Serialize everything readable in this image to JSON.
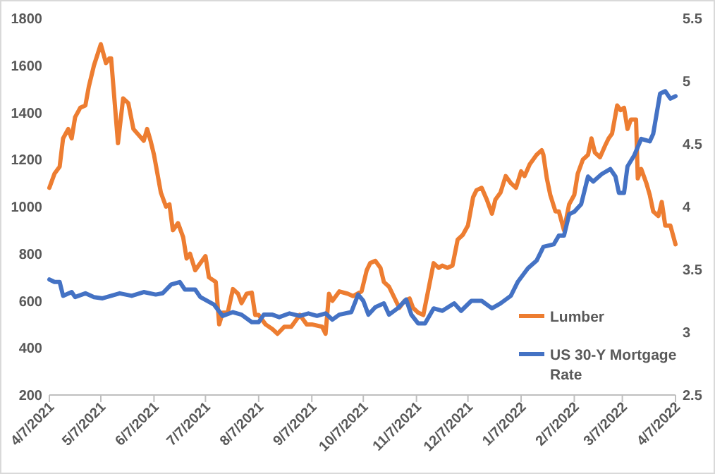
{
  "chart_data": {
    "type": "line",
    "legend": "bottom right",
    "marker": "none",
    "line_style": "solid",
    "grid": false,
    "xlim": [
      "2021-04-07",
      "2022-04-07"
    ],
    "xticks": [
      {
        "value": "2021-04-07",
        "label": "4/7/2021"
      },
      {
        "value": "2021-05-07",
        "label": "5/7/2021"
      },
      {
        "value": "2021-06-07",
        "label": "6/7/2021"
      },
      {
        "value": "2021-07-07",
        "label": "7/7/2021"
      },
      {
        "value": "2021-08-07",
        "label": "8/7/2021"
      },
      {
        "value": "2021-09-07",
        "label": "9/7/2021"
      },
      {
        "value": "2021-10-07",
        "label": "10/7/2021"
      },
      {
        "value": "2021-11-07",
        "label": "11/7/2021"
      },
      {
        "value": "2021-12-07",
        "label": "12/7/2021"
      },
      {
        "value": "2022-01-07",
        "label": "1/7/2022"
      },
      {
        "value": "2022-02-07",
        "label": "2/7/2022"
      },
      {
        "value": "2022-03-07",
        "label": "3/7/2022"
      },
      {
        "value": "2022-04-07",
        "label": "4/7/2022"
      }
    ],
    "ylim": [
      200,
      1800
    ],
    "yticks": [
      200,
      400,
      600,
      800,
      1000,
      1200,
      1400,
      1600,
      1800
    ],
    "y2lim": [
      2.5,
      5.5
    ],
    "y2ticks": [
      2.5,
      3,
      3.5,
      4,
      4.5,
      5,
      5.5
    ],
    "series": [
      {
        "name": "Lumber",
        "color": "#ed7d31",
        "x": [
          "2021-04-07",
          "2021-04-10",
          "2021-04-13",
          "2021-04-15",
          "2021-04-18",
          "2021-04-20",
          "2021-04-22",
          "2021-04-25",
          "2021-04-28",
          "2021-04-30",
          "2021-05-03",
          "2021-05-07",
          "2021-05-10",
          "2021-05-12",
          "2021-05-13",
          "2021-05-17",
          "2021-05-20",
          "2021-05-23",
          "2021-05-26",
          "2021-06-01",
          "2021-06-03",
          "2021-06-05",
          "2021-06-07",
          "2021-06-11",
          "2021-06-14",
          "2021-06-16",
          "2021-06-18",
          "2021-06-21",
          "2021-06-24",
          "2021-06-26",
          "2021-06-28",
          "2021-07-01",
          "2021-07-07",
          "2021-07-09",
          "2021-07-13",
          "2021-07-15",
          "2021-07-17",
          "2021-07-20",
          "2021-07-23",
          "2021-07-26",
          "2021-07-28",
          "2021-07-31",
          "2021-08-03",
          "2021-08-05",
          "2021-08-07",
          "2021-08-11",
          "2021-08-15",
          "2021-08-18",
          "2021-08-22",
          "2021-08-26",
          "2021-08-31",
          "2021-09-04",
          "2021-09-07",
          "2021-09-13",
          "2021-09-15",
          "2021-09-17",
          "2021-09-19",
          "2021-09-23",
          "2021-09-28",
          "2021-10-01",
          "2021-10-06",
          "2021-10-09",
          "2021-10-11",
          "2021-10-14",
          "2021-10-17",
          "2021-10-19",
          "2021-10-22",
          "2021-10-26",
          "2021-10-28",
          "2021-10-31",
          "2021-11-03",
          "2021-11-05",
          "2021-11-08",
          "2021-11-11",
          "2021-11-14",
          "2021-11-17",
          "2021-11-20",
          "2021-11-22",
          "2021-11-25",
          "2021-11-28",
          "2021-12-01",
          "2021-12-04",
          "2021-12-07",
          "2021-12-10",
          "2021-12-12",
          "2021-12-15",
          "2021-12-18",
          "2021-12-21",
          "2021-12-23",
          "2021-12-26",
          "2021-12-29",
          "2022-01-01",
          "2022-01-04",
          "2022-01-07",
          "2022-01-09",
          "2022-01-12",
          "2022-01-16",
          "2022-01-19",
          "2022-01-20",
          "2022-01-22",
          "2022-01-24",
          "2022-01-27",
          "2022-01-29",
          "2022-02-01",
          "2022-02-04",
          "2022-02-07",
          "2022-02-09",
          "2022-02-12",
          "2022-02-15",
          "2022-02-17",
          "2022-02-19",
          "2022-02-22",
          "2022-02-25",
          "2022-02-27",
          "2022-03-01",
          "2022-03-04",
          "2022-03-06",
          "2022-03-08",
          "2022-03-10",
          "2022-03-12",
          "2022-03-15",
          "2022-03-16",
          "2022-03-18",
          "2022-03-21",
          "2022-03-23",
          "2022-03-25",
          "2022-03-28",
          "2022-03-30",
          "2022-04-01",
          "2022-04-04",
          "2022-04-07"
        ],
        "values": [
          1080,
          1140,
          1170,
          1290,
          1330,
          1290,
          1380,
          1420,
          1430,
          1510,
          1600,
          1690,
          1610,
          1630,
          1630,
          1270,
          1460,
          1440,
          1330,
          1280,
          1330,
          1280,
          1220,
          1060,
          1000,
          1010,
          900,
          930,
          870,
          780,
          800,
          730,
          790,
          700,
          680,
          500,
          550,
          550,
          650,
          630,
          590,
          630,
          635,
          540,
          540,
          500,
          480,
          460,
          490,
          490,
          540,
          500,
          500,
          490,
          460,
          630,
          600,
          640,
          630,
          620,
          640,
          730,
          760,
          770,
          740,
          680,
          660,
          600,
          570,
          600,
          610,
          570,
          550,
          540,
          650,
          760,
          740,
          750,
          740,
          750,
          860,
          880,
          920,
          1040,
          1070,
          1080,
          1030,
          970,
          1030,
          1060,
          1130,
          1100,
          1080,
          1150,
          1130,
          1180,
          1220,
          1240,
          1220,
          1120,
          1050,
          980,
          980,
          900,
          1010,
          1050,
          1140,
          1200,
          1220,
          1290,
          1230,
          1210,
          1260,
          1290,
          1310,
          1430,
          1410,
          1420,
          1330,
          1370,
          1370,
          1120,
          1160,
          1100,
          1050,
          980,
          960,
          1020,
          920,
          920,
          840
        ]
      },
      {
        "name": "US 30-Y Mortgage Rate",
        "color": "#4472c4",
        "axis": "y2",
        "x": [
          "2021-04-07",
          "2021-04-10",
          "2021-04-13",
          "2021-04-15",
          "2021-04-20",
          "2021-04-22",
          "2021-04-28",
          "2021-05-03",
          "2021-05-08",
          "2021-05-13",
          "2021-05-18",
          "2021-05-25",
          "2021-06-01",
          "2021-06-08",
          "2021-06-12",
          "2021-06-17",
          "2021-06-22",
          "2021-06-25",
          "2021-07-01",
          "2021-07-04",
          "2021-07-12",
          "2021-07-17",
          "2021-07-23",
          "2021-07-28",
          "2021-08-03",
          "2021-08-07",
          "2021-08-10",
          "2021-08-15",
          "2021-08-19",
          "2021-08-25",
          "2021-08-31",
          "2021-09-05",
          "2021-09-10",
          "2021-09-15",
          "2021-09-19",
          "2021-09-23",
          "2021-09-30",
          "2021-10-04",
          "2021-10-07",
          "2021-10-10",
          "2021-10-14",
          "2021-10-19",
          "2021-10-22",
          "2021-10-27",
          "2021-11-01",
          "2021-11-04",
          "2021-11-08",
          "2021-11-12",
          "2021-11-17",
          "2021-11-22",
          "2021-11-29",
          "2021-12-03",
          "2021-12-09",
          "2021-12-15",
          "2021-12-21",
          "2021-12-26",
          "2022-01-01",
          "2022-01-05",
          "2022-01-11",
          "2022-01-16",
          "2022-01-20",
          "2022-01-26",
          "2022-01-29",
          "2022-02-01",
          "2022-02-04",
          "2022-02-07",
          "2022-02-11",
          "2022-02-15",
          "2022-02-18",
          "2022-02-23",
          "2022-02-28",
          "2022-03-03",
          "2022-03-05",
          "2022-03-08",
          "2022-03-10",
          "2022-03-14",
          "2022-03-18",
          "2022-03-23",
          "2022-03-25",
          "2022-03-29",
          "2022-04-01",
          "2022-04-04",
          "2022-04-07"
        ],
        "values": [
          3.42,
          3.4,
          3.4,
          3.29,
          3.32,
          3.28,
          3.31,
          3.28,
          3.27,
          3.29,
          3.31,
          3.29,
          3.32,
          3.3,
          3.31,
          3.38,
          3.4,
          3.34,
          3.34,
          3.28,
          3.22,
          3.13,
          3.16,
          3.14,
          3.08,
          3.08,
          3.14,
          3.14,
          3.12,
          3.15,
          3.13,
          3.15,
          3.13,
          3.15,
          3.1,
          3.14,
          3.16,
          3.3,
          3.25,
          3.14,
          3.2,
          3.23,
          3.14,
          3.19,
          3.26,
          3.14,
          3.07,
          3.07,
          3.19,
          3.17,
          3.23,
          3.17,
          3.25,
          3.25,
          3.19,
          3.23,
          3.29,
          3.4,
          3.51,
          3.57,
          3.68,
          3.7,
          3.77,
          3.77,
          3.94,
          3.96,
          4.02,
          4.24,
          4.2,
          4.26,
          4.3,
          4.24,
          4.11,
          4.11,
          4.32,
          4.41,
          4.54,
          4.52,
          4.58,
          4.9,
          4.92,
          4.86,
          4.88
        ]
      }
    ]
  }
}
